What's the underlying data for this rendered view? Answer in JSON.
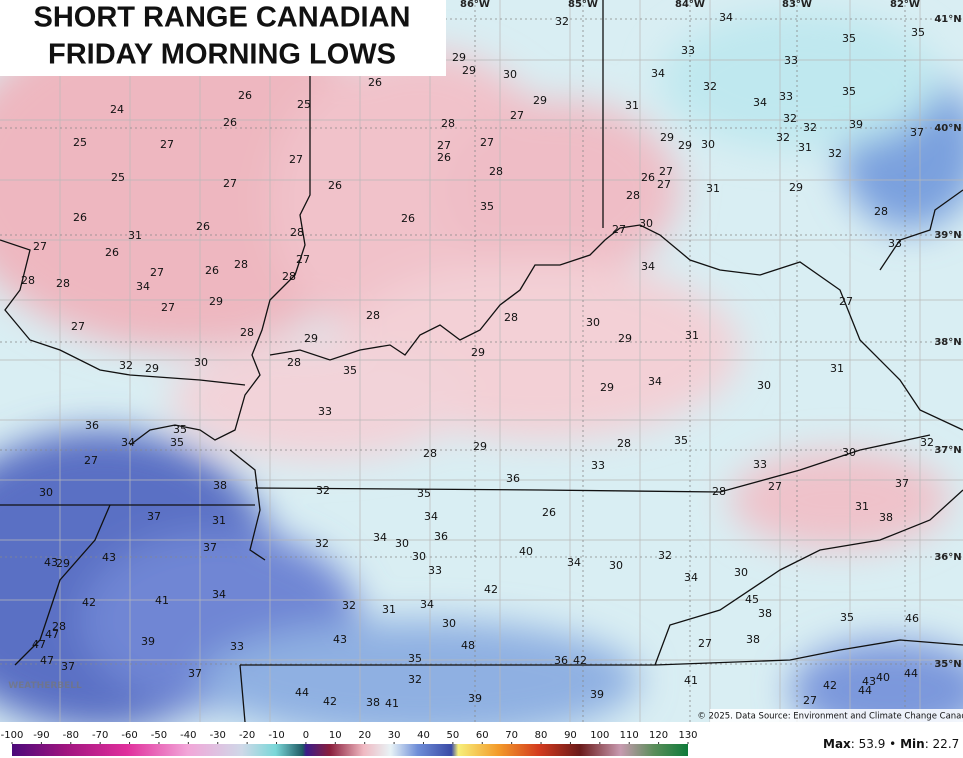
{
  "header": {
    "title_lines": [
      "SHORT RANGE CANADIAN",
      "FRIDAY MORNING LOWS"
    ]
  },
  "map": {
    "longitudes": [
      "86°W",
      "85°W",
      "84°W",
      "83°W",
      "82°W"
    ],
    "latitudes": [
      "41°N",
      "40°N",
      "39°N",
      "38°N",
      "37°N",
      "36°N",
      "35°N"
    ],
    "temps": [
      32,
      34,
      29,
      29,
      30,
      33,
      34,
      35,
      35,
      33,
      32,
      34,
      33,
      35,
      29,
      27,
      31,
      32,
      32,
      39,
      37,
      32,
      31,
      32,
      26,
      25,
      26,
      24,
      26,
      25,
      27,
      28,
      27,
      26,
      27,
      29,
      29,
      30,
      27,
      25,
      27,
      26,
      28,
      27,
      26,
      27,
      28,
      31,
      29,
      26,
      26,
      31,
      26,
      35,
      28,
      30,
      27,
      28,
      27,
      26,
      27,
      26,
      28,
      27,
      28,
      28,
      28,
      34,
      33,
      34,
      27,
      29,
      27,
      28,
      28,
      30,
      27,
      28,
      29,
      29,
      31,
      29,
      32,
      29,
      30,
      28,
      35,
      31,
      29,
      34,
      30,
      33,
      36,
      35,
      34,
      35,
      27,
      28,
      29,
      28,
      35,
      33,
      33,
      30,
      32,
      36,
      38,
      30,
      32,
      35,
      28,
      27,
      37,
      37,
      31,
      34,
      26,
      31,
      38,
      37,
      32,
      34,
      30,
      36,
      30,
      40,
      43,
      43,
      29,
      33,
      34,
      30,
      32,
      34,
      30,
      42,
      42,
      41,
      34,
      32,
      31,
      34,
      45,
      28,
      38,
      30,
      35,
      46,
      47,
      47,
      39,
      43,
      33,
      27,
      38,
      48,
      47,
      37,
      35,
      36,
      42,
      37,
      32,
      41,
      44,
      42,
      38,
      41,
      39,
      39,
      42,
      43,
      40,
      44,
      44,
      27
    ]
  },
  "colorbar": {
    "ticks": [
      -100,
      -90,
      -80,
      -70,
      -60,
      -50,
      -40,
      -30,
      -20,
      -10,
      0,
      10,
      20,
      30,
      40,
      50,
      60,
      70,
      80,
      90,
      100,
      110,
      120,
      130
    ]
  },
  "footer": {
    "logo": "WEATHERBELL",
    "credit": "© 2025. Data Source: Environment and Climate Change Canada.",
    "max_label": "Max",
    "max": 53.9,
    "min_label": "Min",
    "min": 22.7
  }
}
